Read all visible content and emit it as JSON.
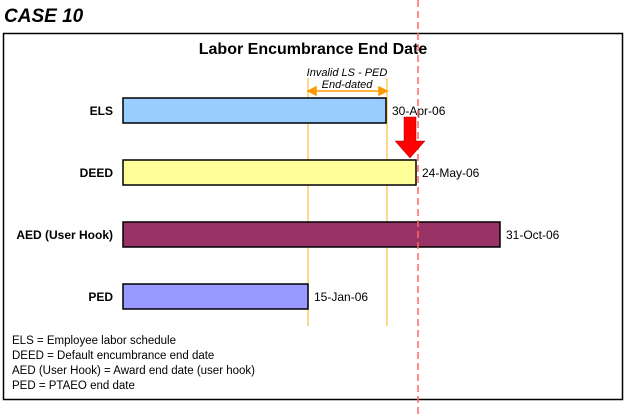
{
  "case_title": "CASE 10",
  "diagram_title": "Labor Encumbrance End Date",
  "annotation": {
    "line1": "Invalid LS - PED",
    "line2": "End-dated"
  },
  "rows": [
    {
      "label": "ELS",
      "date": "30-Apr-06",
      "color": "#99ccff"
    },
    {
      "label": "DEED",
      "date": "24-May-06",
      "color": "#ffff99"
    },
    {
      "label": "AED (User Hook)",
      "date": "31-Oct-06",
      "color": "#993366"
    },
    {
      "label": "PED",
      "date": "15-Jan-06",
      "color": "#9999ff"
    }
  ],
  "legend": [
    "ELS = Employee labor schedule",
    "DEED = Default encumbrance end date",
    "AED (User Hook) = Award end date (user hook)",
    "PED = PTAEO end date"
  ],
  "colors": {
    "marker_line": "#ff6666",
    "arrow": "#ff0000",
    "range_lines": "#ffcc66",
    "range_arrow": "#ff9900"
  }
}
